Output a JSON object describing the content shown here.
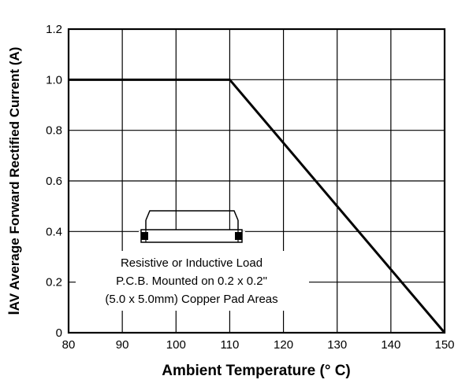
{
  "chart_data": {
    "type": "line",
    "xlabel": "Ambient Temperature (° C)",
    "ylabel_prefix": "I",
    "ylabel_sub": "AV",
    "ylabel_rest": " Average Forward Rectified Current (A)",
    "xlim": [
      80,
      150
    ],
    "ylim": [
      0,
      1.2
    ],
    "xticks": [
      "80",
      "90",
      "100",
      "110",
      "120",
      "130",
      "140",
      "150"
    ],
    "yticks": [
      "0",
      "0.2",
      "0.4",
      "0.6",
      "0.8",
      "1.0",
      "1.2"
    ],
    "grid": true,
    "series": [
      {
        "x": [
          80,
          110,
          150
        ],
        "y": [
          1.0,
          1.0,
          0.0
        ]
      }
    ],
    "annotation": [
      "Resistive or Inductive Load",
      "P.C.B. Mounted on 0.2 x 0.2\"",
      "(5.0 x 5.0mm) Copper Pad Areas"
    ],
    "colors": {
      "line": "#000000",
      "grid": "#000000",
      "background": "#ffffff"
    }
  }
}
